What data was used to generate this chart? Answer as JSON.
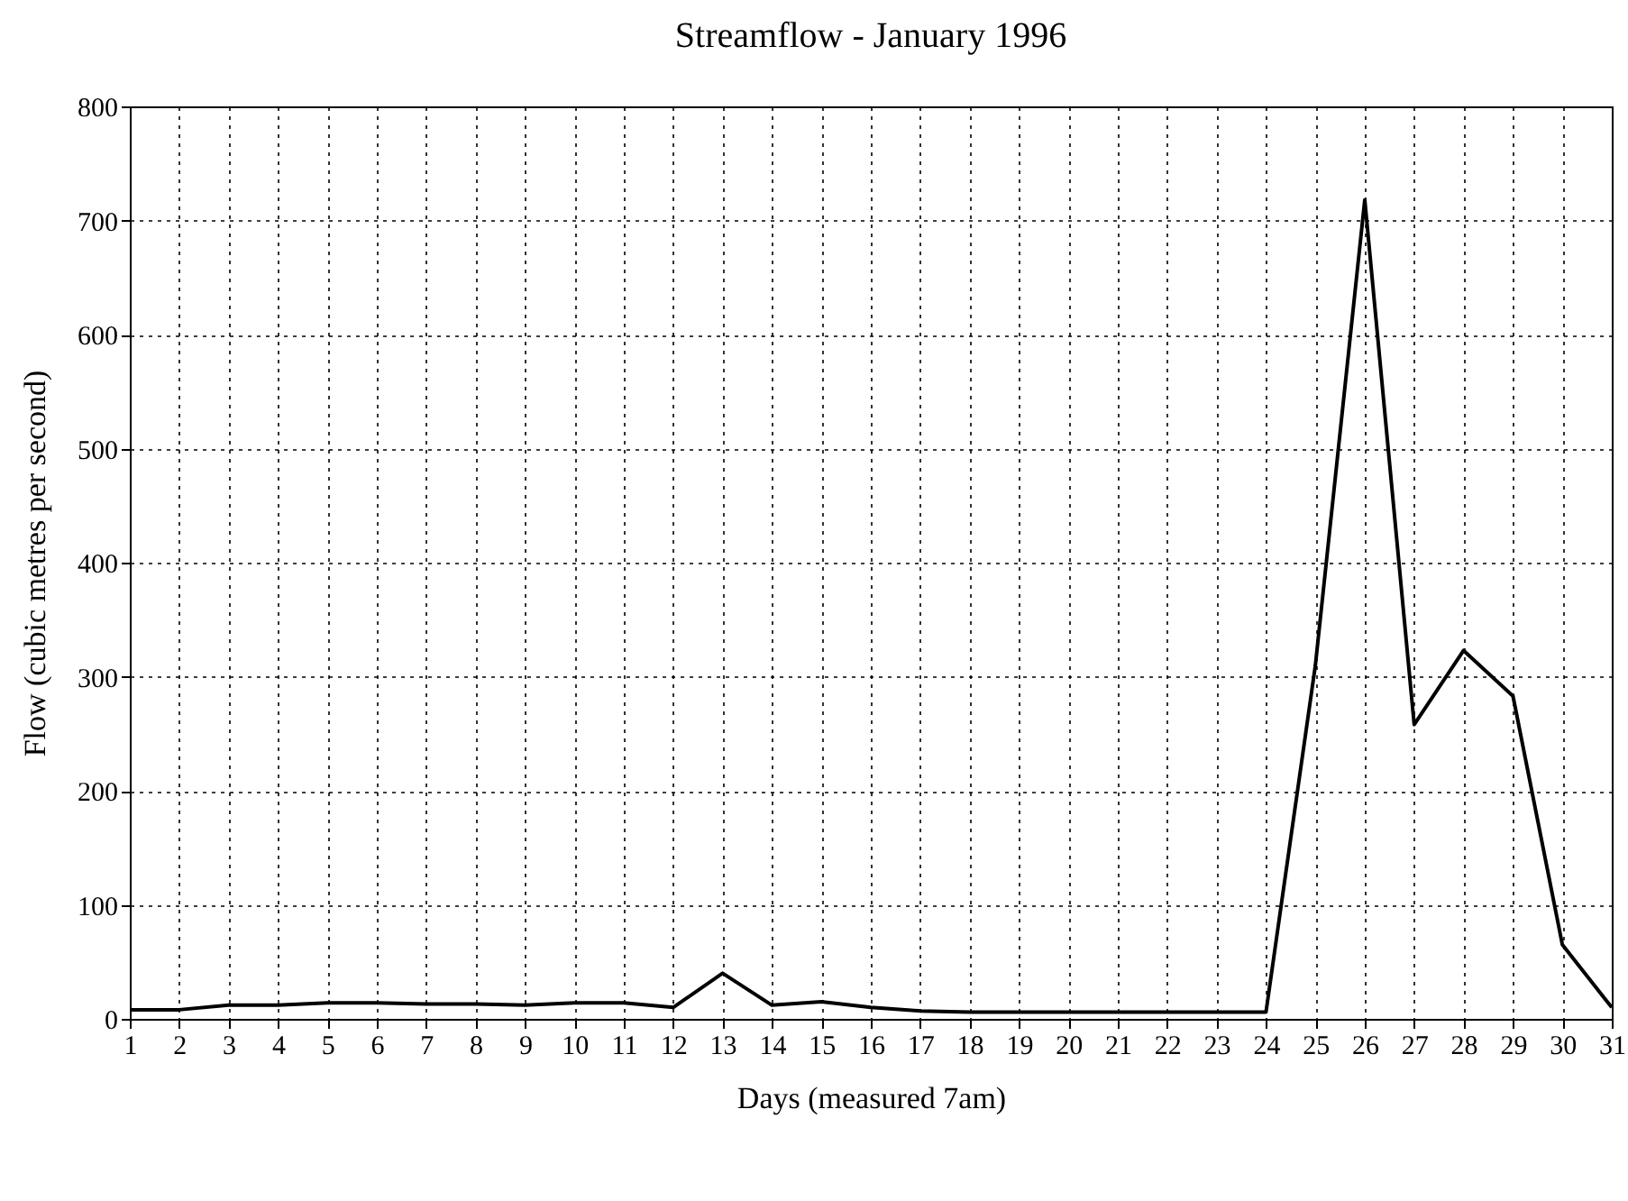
{
  "chart_data": {
    "type": "line",
    "title": "Streamflow - January 1996",
    "xlabel": "Days (measured 7am)",
    "ylabel": "Flow (cubic metres per second)",
    "x": [
      1,
      2,
      3,
      4,
      5,
      6,
      7,
      8,
      9,
      10,
      11,
      12,
      13,
      14,
      15,
      16,
      17,
      18,
      19,
      20,
      21,
      22,
      23,
      24,
      25,
      26,
      27,
      28,
      29,
      30,
      31
    ],
    "series": [
      {
        "color": "#000000",
        "values": [
          8,
          8,
          12,
          12,
          14,
          14,
          13,
          13,
          12,
          14,
          14,
          10,
          40,
          12,
          15,
          10,
          7,
          6,
          6,
          6,
          6,
          6,
          6,
          6,
          310,
          718,
          258,
          323,
          283,
          65,
          10
        ]
      }
    ],
    "xlim": [
      1,
      31
    ],
    "xticks": [
      1,
      2,
      3,
      4,
      5,
      6,
      7,
      8,
      9,
      10,
      11,
      12,
      13,
      14,
      15,
      16,
      17,
      18,
      19,
      20,
      21,
      22,
      23,
      24,
      25,
      26,
      27,
      28,
      29,
      30,
      31
    ],
    "ylim": [
      0,
      800
    ],
    "yticks": [
      0,
      100,
      200,
      300,
      400,
      500,
      600,
      700,
      800
    ],
    "grid": true,
    "marker": "none",
    "line_style": "solid"
  }
}
